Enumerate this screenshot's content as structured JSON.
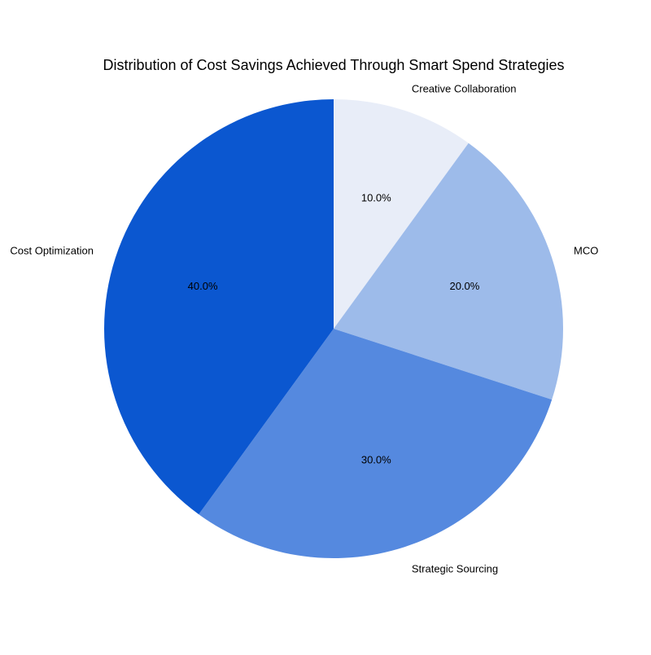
{
  "chart_data": {
    "type": "pie",
    "title": "Distribution of Cost Savings Achieved Through Smart Spend Strategies",
    "start_angle_deg": 90,
    "direction": "clockwise",
    "slices": [
      {
        "label": "Creative Collaboration",
        "value": 10.0,
        "pct_label": "10.0%",
        "color": "#e8edf8"
      },
      {
        "label": "MCO",
        "value": 20.0,
        "pct_label": "20.0%",
        "color": "#9dbbea"
      },
      {
        "label": "Strategic Sourcing",
        "value": 30.0,
        "pct_label": "30.0%",
        "color": "#5589df"
      },
      {
        "label": "Cost Optimization",
        "value": 40.0,
        "pct_label": "40.0%",
        "color": "#0b57d0"
      }
    ],
    "legend": "none"
  }
}
